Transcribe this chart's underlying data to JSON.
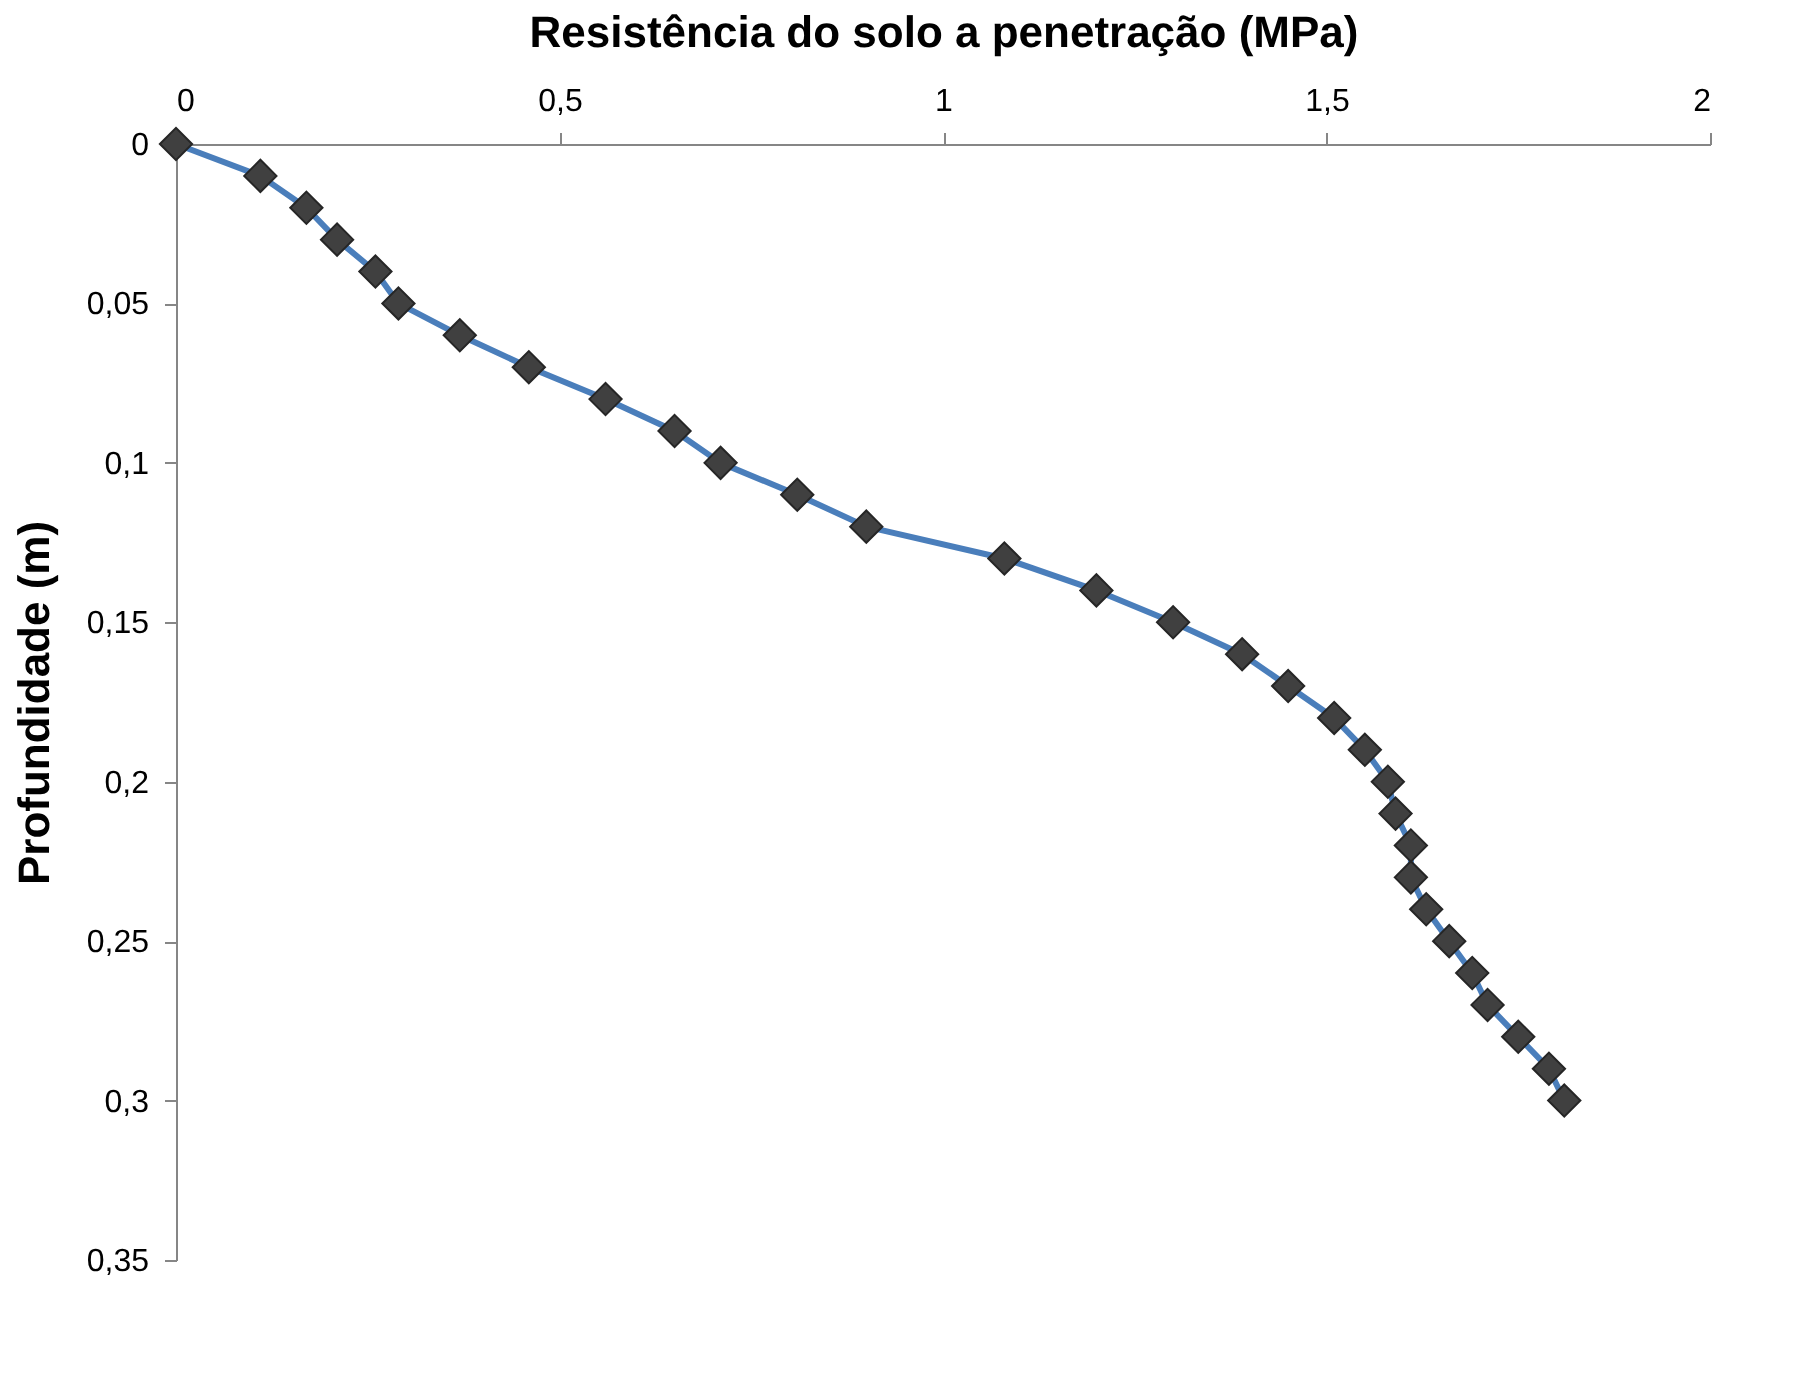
{
  "chart_data": {
    "type": "line",
    "xlabel": "Resistência do solo a penetração (MPa)",
    "ylabel": "Profundidade (m)",
    "series": [
      {
        "color": "#4a7ebb",
        "x": [
          0,
          0.11,
          0.17,
          0.21,
          0.26,
          0.29,
          0.37,
          0.46,
          0.56,
          0.65,
          0.71,
          0.81,
          0.9,
          1.08,
          1.2,
          1.3,
          1.39,
          1.45,
          1.51,
          1.55,
          1.58,
          1.59,
          1.61,
          1.61,
          1.63,
          1.66,
          1.69,
          1.71,
          1.75,
          1.79,
          1.81
        ],
        "values": [
          0,
          0.01,
          0.02,
          0.03,
          0.04,
          0.05,
          0.06,
          0.07,
          0.08,
          0.09,
          0.1,
          0.11,
          0.12,
          0.13,
          0.14,
          0.15,
          0.16,
          0.17,
          0.18,
          0.19,
          0.2,
          0.21,
          0.22,
          0.23,
          0.24,
          0.25,
          0.26,
          0.27,
          0.28,
          0.29,
          0.3
        ]
      }
    ],
    "marker": "diamond",
    "xlim": [
      0,
      2
    ],
    "xticks": [
      0,
      {
        "value": 0.5,
        "label": "0,5"
      },
      1,
      {
        "value": 1.5,
        "label": "1,5"
      },
      2
    ],
    "ylim": [
      0.35,
      0
    ],
    "yticks": [
      0,
      {
        "value": 0.05,
        "label": "0,05"
      },
      {
        "value": 0.1,
        "label": "0,1"
      },
      {
        "value": 0.15,
        "label": "0,15"
      },
      {
        "value": 0.2,
        "label": "0,2"
      },
      {
        "value": 0.25,
        "label": "0,25"
      },
      {
        "value": 0.3,
        "label": "0,3"
      },
      {
        "value": 0.35,
        "label": "0,35"
      }
    ],
    "grid": false
  }
}
